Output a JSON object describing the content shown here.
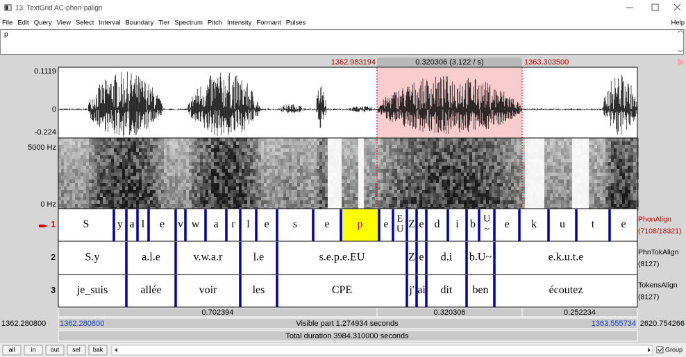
{
  "window": {
    "title": "13. TextGrid AC-phon-palign"
  },
  "menu": [
    "File",
    "Edit",
    "Query",
    "View",
    "Select",
    "Interval",
    "Boundary",
    "Tier",
    "Spectrum",
    "Pitch",
    "Intensity",
    "Formant",
    "Pulses"
  ],
  "help": "Help",
  "text_field": "p",
  "cursor_row": {
    "left": "1362.983194",
    "selection": "0.320306 (3.122 / s)",
    "right": "1363.303500"
  },
  "waveform": {
    "max": "0.1119",
    "zero": "0",
    "min": "-0.224"
  },
  "spectrogram": {
    "max": "5000 Hz",
    "min": "0 Hz"
  },
  "tiers": [
    {
      "number": "1",
      "name": "PhonAlign",
      "count": "(7108/18321)",
      "intervals": [
        "S",
        "y",
        "a",
        "l",
        "e",
        "v",
        "w",
        "a",
        "r",
        "l",
        "e",
        "s",
        "e",
        "p",
        "e",
        [
          "E",
          "U"
        ],
        "Z",
        "e",
        "d",
        "i",
        "b",
        [
          "U",
          "~"
        ],
        "e",
        "k",
        "u",
        "t",
        "e"
      ]
    },
    {
      "number": "2",
      "name": "PhnTokAlign",
      "count": "(8127)",
      "intervals": [
        "S.y",
        "a.l.e",
        "v.w.a.r",
        "l.e",
        "s.e.p.e.EU",
        "Z",
        "e",
        "d.i",
        "b.U~",
        "e.k.u.t.e"
      ]
    },
    {
      "number": "3",
      "name": "TokensAlign",
      "count": "(8127)",
      "intervals": [
        "je_suis",
        "allée",
        "voir",
        "les",
        "CPE",
        "j'",
        "ai",
        "dit",
        "ben",
        "écoutez"
      ]
    }
  ],
  "durations": [
    "0.702394",
    "0.320306",
    "0.252234"
  ],
  "time_row": {
    "window_start": "1362.280800",
    "visible_start": "1362.280800",
    "visible": "Visible part 1.274934 seconds",
    "visible_end": "1363.555734",
    "window_end": "2620.754266"
  },
  "total": "Total duration 3984.310000 seconds",
  "buttons": [
    "all",
    "in",
    "out",
    "sel",
    "bak"
  ],
  "group": "Group"
}
